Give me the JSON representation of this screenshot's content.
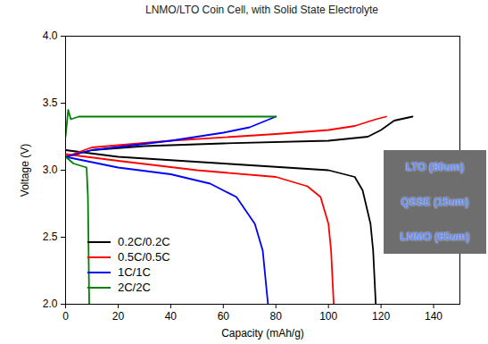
{
  "chart_data": {
    "type": "line",
    "title": "LNMO/LTO Coin Cell, with Solid State Electrolyte",
    "x_label": "Capacity (mAh/g)",
    "y_label": "Voltage (V)",
    "xlim": [
      0,
      150
    ],
    "xticks": [
      0,
      20,
      40,
      60,
      80,
      100,
      120,
      140
    ],
    "ylim": [
      2.0,
      4.0
    ],
    "yticks": [
      {
        "value": 2.0,
        "label": "2.0"
      },
      {
        "value": 2.5,
        "label": "2.5"
      },
      {
        "value": 3.0,
        "label": "3.0"
      },
      {
        "value": 3.5,
        "label": "3.5"
      },
      {
        "value": 4.0,
        "label": "4.0"
      }
    ],
    "legend": "bottom-left",
    "annotations": [
      "LTO (80um)",
      "QSSE (15um)",
      "LNMO (65um)"
    ],
    "series": [
      {
        "name": "0.2C/0.2C",
        "color": "#000000",
        "x": [
          0,
          10,
          30,
          60,
          100,
          115,
          120,
          125,
          132,
          null,
          0,
          20,
          60,
          100,
          110,
          113,
          116,
          117,
          118
        ],
        "values": [
          3.1,
          3.15,
          3.18,
          3.2,
          3.22,
          3.25,
          3.3,
          3.37,
          3.4,
          null,
          3.15,
          3.1,
          3.05,
          3.0,
          2.95,
          2.85,
          2.6,
          2.4,
          2.0
        ]
      },
      {
        "name": "0.5C/0.5C",
        "color": "#ff0000",
        "x": [
          0,
          10,
          40,
          80,
          100,
          110,
          118,
          122,
          null,
          0,
          20,
          50,
          80,
          92,
          97,
          100,
          101,
          102
        ],
        "values": [
          3.1,
          3.17,
          3.22,
          3.27,
          3.3,
          3.33,
          3.38,
          3.4,
          null,
          3.12,
          3.07,
          3.0,
          2.95,
          2.88,
          2.8,
          2.6,
          2.4,
          2.0
        ]
      },
      {
        "name": "1C/1C",
        "color": "#0000ff",
        "x": [
          0,
          10,
          40,
          60,
          70,
          75,
          80,
          null,
          0,
          20,
          40,
          55,
          65,
          72,
          75,
          77
        ],
        "values": [
          3.1,
          3.15,
          3.22,
          3.28,
          3.32,
          3.36,
          3.4,
          null,
          3.1,
          3.02,
          2.97,
          2.9,
          2.8,
          2.6,
          2.4,
          2.0
        ]
      },
      {
        "name": "2C/2C",
        "color": "#008000",
        "x": [
          0,
          1,
          2,
          5,
          80,
          null,
          0,
          3,
          8,
          8.5,
          9
        ],
        "values": [
          3.25,
          3.45,
          3.38,
          3.4,
          3.4,
          null,
          3.1,
          3.05,
          3.02,
          2.8,
          2.0
        ]
      }
    ]
  }
}
